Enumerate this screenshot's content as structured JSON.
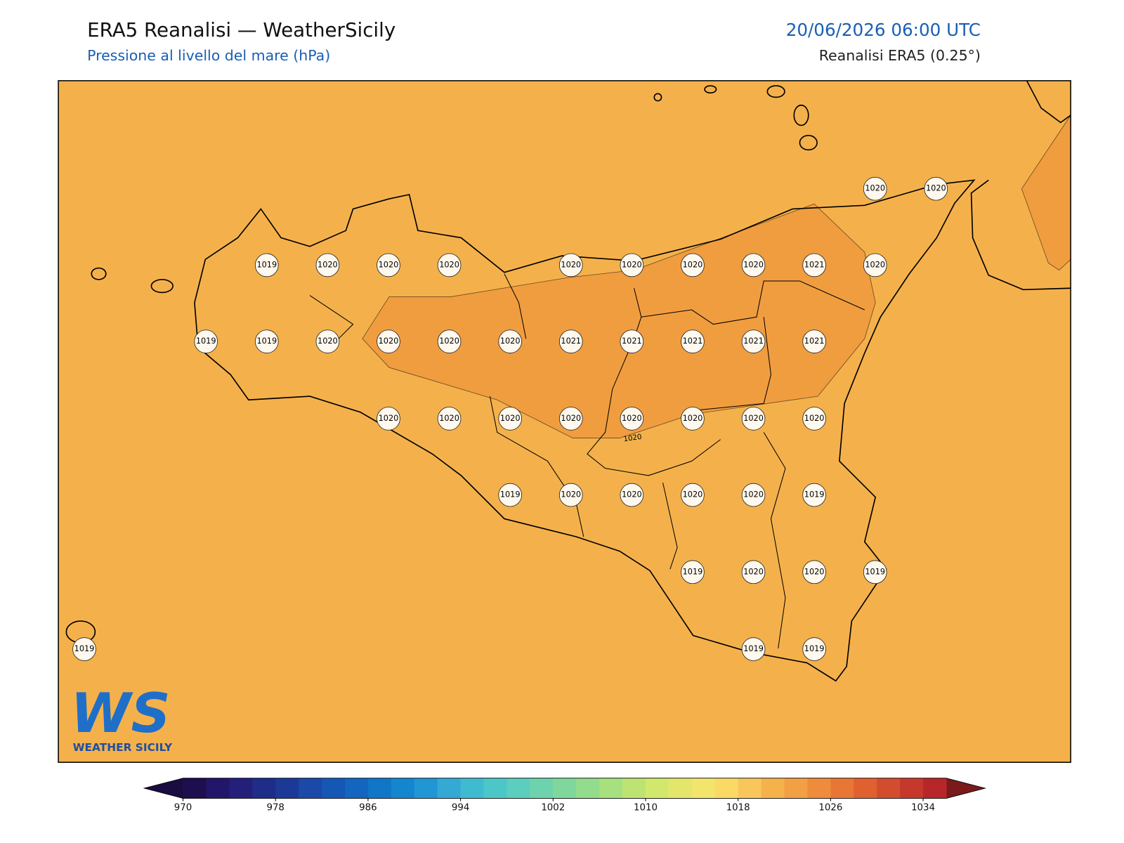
{
  "header": {
    "title": "ERA5 Reanalisi — WeatherSicily",
    "subtitle": "Pressione al livello del mare (hPa)",
    "datetime": "20/06/2026 06:00 UTC",
    "source": "Reanalisi ERA5 (0.25°)"
  },
  "map": {
    "fill_color": "#f4b14b",
    "high_color": "#f09d40",
    "contour_label": "1020",
    "stations": [
      1020,
      1020,
      1019,
      1020,
      1020,
      1020,
      1020,
      1020,
      1020,
      1020,
      1021,
      1020,
      1019,
      1019,
      1020,
      1020,
      1020,
      1020,
      1021,
      1021,
      1021,
      1021,
      1021,
      1020,
      1020,
      1020,
      1020,
      1020,
      1020,
      1020,
      1020,
      1019,
      1020,
      1020,
      1020,
      1020,
      1019,
      1019,
      1020,
      1020,
      1019,
      1019,
      1019,
      1019
    ]
  },
  "colorbar": {
    "range": [
      970,
      1036
    ],
    "ticks": [
      970,
      978,
      986,
      994,
      1002,
      1010,
      1018,
      1026,
      1034
    ],
    "under_color": "#1a0c40",
    "over_color": "#7a1a1a",
    "colors": [
      "#1d0e4e",
      "#22166a",
      "#241f7a",
      "#1e2c8a",
      "#1b3a98",
      "#1a49a8",
      "#1557b5",
      "#1266bf",
      "#0f76c8",
      "#1486cf",
      "#2196d4",
      "#33a9d4",
      "#3fbbd0",
      "#4dc6c8",
      "#5ccebd",
      "#6dd3ad",
      "#7fd79c",
      "#93dc8c",
      "#a7e07e",
      "#bde472",
      "#d2e86d",
      "#e4e66c",
      "#f3e56b",
      "#fbd965",
      "#f8c65a",
      "#f5b24b",
      "#f2a043",
      "#ee8c3b",
      "#e87635",
      "#e06030",
      "#d44c2e",
      "#c6382b",
      "#b8262a"
    ]
  },
  "logo": {
    "mark": "WS",
    "name": "WEATHER SICILY"
  }
}
